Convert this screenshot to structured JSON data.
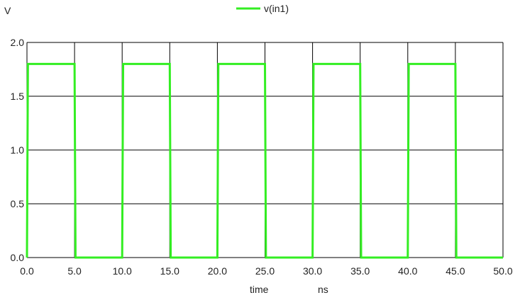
{
  "chart_data": {
    "type": "line",
    "ylabel": "V",
    "xlabel": "time",
    "xunit": "ns",
    "xlim": [
      0,
      50
    ],
    "ylim": [
      0,
      2
    ],
    "x_ticks": [
      "0.0",
      "5.0",
      "10.0",
      "15.0",
      "20.0",
      "25.0",
      "30.0",
      "35.0",
      "40.0",
      "45.0",
      "50.0"
    ],
    "y_ticks": [
      "0.0",
      "0.5",
      "1.0",
      "1.5",
      "2.0"
    ],
    "grid": true,
    "legend_position": "top-center",
    "series": [
      {
        "name": "v(in1)",
        "color": "#33ee22",
        "x": [
          0,
          0.1,
          5,
          5.1,
          10,
          10.1,
          15,
          15.1,
          20,
          20.1,
          25,
          25.1,
          30,
          30.1,
          35,
          35.1,
          40,
          40.1,
          45,
          45.1,
          50
        ],
        "y": [
          0,
          1.8,
          1.8,
          0,
          0,
          1.8,
          1.8,
          0,
          0,
          1.8,
          1.8,
          0,
          0,
          1.8,
          1.8,
          0,
          0,
          1.8,
          1.8,
          0,
          0
        ]
      }
    ]
  }
}
